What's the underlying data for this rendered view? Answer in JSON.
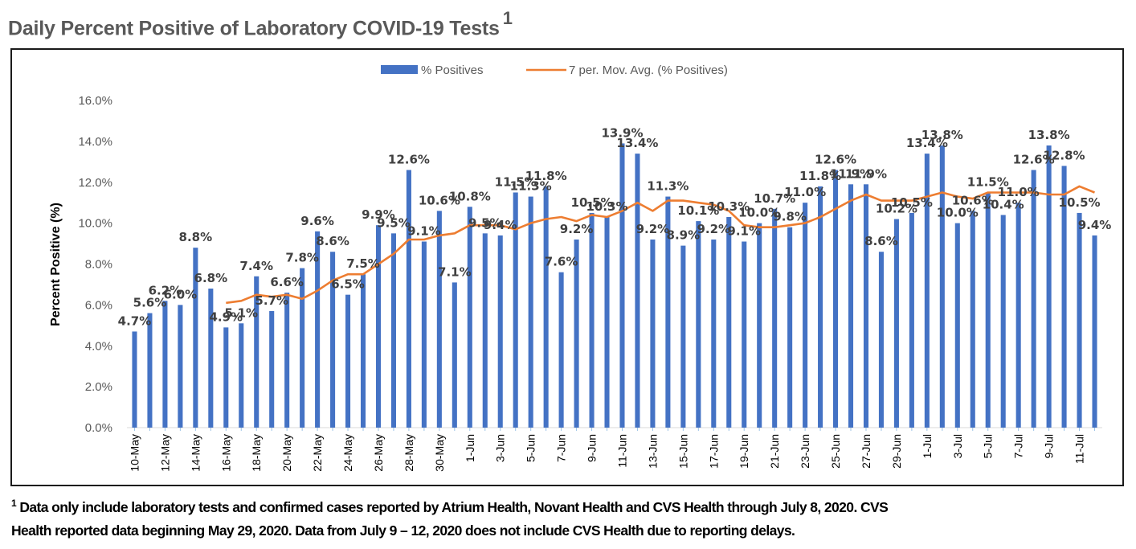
{
  "page": {
    "title": "Daily Percent Positive of Laboratory COVID-19 Tests",
    "title_superscript": "1",
    "footnote_marker": "1",
    "footnote_line1": "Data only include laboratory tests and confirmed cases reported by Atrium Health, Novant Health and CVS Health through July 8, 2020. CVS",
    "footnote_line2": "Health reported data beginning May 29, 2020.  Data from July 9 – 12, 2020 does not include CVS Health due to reporting delays."
  },
  "chart_data": {
    "type": "bar",
    "title": "Daily Percent Positive of Laboratory COVID-19 Tests",
    "xlabel": "",
    "ylabel": "Percent Positive (%)",
    "ylim": [
      0,
      16
    ],
    "yticks": [
      0,
      2,
      4,
      6,
      8,
      10,
      12,
      14,
      16
    ],
    "ytick_labels": [
      "0.0%",
      "2.0%",
      "4.0%",
      "6.0%",
      "8.0%",
      "10.0%",
      "12.0%",
      "14.0%",
      "16.0%"
    ],
    "grid": false,
    "legend_position": "top-center",
    "colors": {
      "bars": "#4472C4",
      "moving_average": "#ED7D31",
      "labels": "#404040",
      "axis_text": "#595959"
    },
    "legend": [
      {
        "name": "% Positives",
        "kind": "bar"
      },
      {
        "name": "7 per. Mov. Avg. (% Positives)",
        "kind": "line"
      }
    ],
    "categories": [
      "10-May",
      "11-May",
      "12-May",
      "13-May",
      "14-May",
      "15-May",
      "16-May",
      "17-May",
      "18-May",
      "19-May",
      "20-May",
      "21-May",
      "22-May",
      "23-May",
      "24-May",
      "25-May",
      "26-May",
      "27-May",
      "28-May",
      "29-May",
      "30-May",
      "31-May",
      "1-Jun",
      "2-Jun",
      "3-Jun",
      "4-Jun",
      "5-Jun",
      "6-Jun",
      "7-Jun",
      "8-Jun",
      "9-Jun",
      "10-Jun",
      "11-Jun",
      "12-Jun",
      "13-Jun",
      "14-Jun",
      "15-Jun",
      "16-Jun",
      "17-Jun",
      "18-Jun",
      "19-Jun",
      "20-Jun",
      "21-Jun",
      "22-Jun",
      "23-Jun",
      "24-Jun",
      "25-Jun",
      "26-Jun",
      "27-Jun",
      "28-Jun",
      "29-Jun",
      "30-Jun",
      "1-Jul",
      "2-Jul",
      "3-Jul",
      "4-Jul",
      "5-Jul",
      "6-Jul",
      "7-Jul",
      "8-Jul",
      "9-Jul",
      "10-Jul",
      "11-Jul",
      "12-Jul"
    ],
    "tick_labels_shown": [
      "10-May",
      "12-May",
      "14-May",
      "16-May",
      "18-May",
      "20-May",
      "22-May",
      "24-May",
      "26-May",
      "28-May",
      "30-May",
      "1-Jun",
      "3-Jun",
      "5-Jun",
      "7-Jun",
      "9-Jun",
      "11-Jun",
      "13-Jun",
      "15-Jun",
      "17-Jun",
      "19-Jun",
      "21-Jun",
      "23-Jun",
      "25-Jun",
      "27-Jun",
      "29-Jun",
      "1-Jul",
      "3-Jul",
      "5-Jul",
      "7-Jul",
      "9-Jul",
      "11-Jul"
    ],
    "series": [
      {
        "name": "% Positives",
        "type": "bar",
        "values": [
          4.7,
          5.6,
          6.2,
          6.0,
          8.8,
          6.8,
          4.9,
          5.1,
          7.4,
          5.7,
          6.6,
          7.8,
          9.6,
          8.6,
          6.5,
          7.5,
          9.9,
          9.5,
          12.6,
          9.1,
          10.6,
          7.1,
          10.8,
          9.5,
          9.4,
          11.5,
          11.3,
          11.8,
          7.6,
          9.2,
          10.5,
          10.3,
          13.9,
          13.4,
          9.2,
          11.3,
          8.9,
          10.1,
          9.2,
          10.3,
          9.1,
          10.0,
          10.7,
          9.8,
          11.0,
          11.8,
          12.6,
          11.9,
          11.9,
          8.6,
          10.2,
          10.5,
          13.4,
          13.8,
          10.0,
          10.6,
          11.5,
          10.4,
          11.0,
          12.6,
          13.8,
          12.8,
          10.5,
          9.4
        ]
      },
      {
        "name": "7 per. Mov. Avg. (% Positives)",
        "type": "line",
        "period": 7,
        "values": [
          null,
          null,
          null,
          null,
          null,
          null,
          6.1,
          6.2,
          6.5,
          6.4,
          6.5,
          6.3,
          6.7,
          7.2,
          7.5,
          7.5,
          8.0,
          8.5,
          9.2,
          9.2,
          9.4,
          9.5,
          9.9,
          9.9,
          9.9,
          9.7,
          10.0,
          10.2,
          10.3,
          10.1,
          10.4,
          10.3,
          10.6,
          11.0,
          10.6,
          11.1,
          11.1,
          11.0,
          10.9,
          10.6,
          9.9,
          9.8,
          9.8,
          9.9,
          10.0,
          10.3,
          10.7,
          11.1,
          11.4,
          11.1,
          11.1,
          11.1,
          11.3,
          11.5,
          11.3,
          11.2,
          11.5,
          11.5,
          11.5,
          11.5,
          11.4,
          11.4,
          11.8,
          11.5
        ]
      }
    ]
  }
}
